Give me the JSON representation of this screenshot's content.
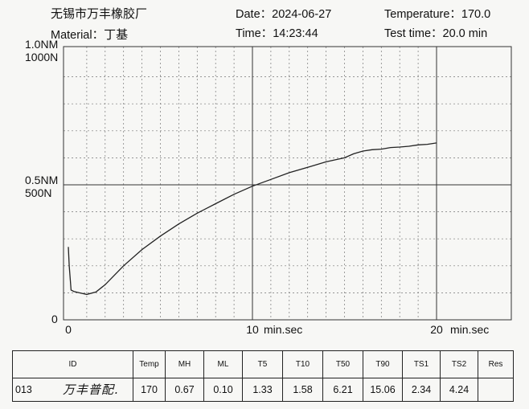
{
  "header": {
    "company": "无锡市万丰橡胶厂",
    "material_label": "Material：",
    "material": "丁基",
    "date_label": "Date：",
    "date": "2024-06-27",
    "time_label": "Time：",
    "time": "14:23:44",
    "temperature_label": "Temperature：",
    "temperature": "170.0",
    "test_time_label": "Test time：",
    "test_time": "20.0 min"
  },
  "chart_data": {
    "type": "line",
    "ylabel_top": [
      "1.0NM",
      "1000N"
    ],
    "ylabel_mid": [
      "0.5NM",
      "500N"
    ],
    "ylabel_zero": "0",
    "xticks": [
      {
        "value": 0,
        "label": "0"
      },
      {
        "value": 10,
        "label": "10"
      },
      {
        "value": 20,
        "label": "20"
      }
    ],
    "xunit_label": "min.sec",
    "xlim": [
      0,
      20
    ],
    "ylim": [
      0,
      1.0
    ],
    "grid": true,
    "series": [
      {
        "x": [
          0,
          0.05,
          0.15,
          0.3,
          0.6,
          1.0,
          1.5,
          2.0,
          3.0,
          4.0,
          5.0,
          6.0,
          7.0,
          8.0,
          9.0,
          10.0,
          11.0,
          12.0,
          13.0,
          14.0,
          15.0,
          15.5,
          16.0,
          16.5,
          17.0,
          17.5,
          18.0,
          18.5,
          19.0,
          19.5,
          20.0
        ],
        "y": [
          0.27,
          0.2,
          0.11,
          0.105,
          0.1,
          0.094,
          0.103,
          0.13,
          0.2,
          0.26,
          0.31,
          0.355,
          0.395,
          0.43,
          0.465,
          0.495,
          0.52,
          0.545,
          0.565,
          0.585,
          0.6,
          0.615,
          0.625,
          0.63,
          0.632,
          0.638,
          0.64,
          0.643,
          0.648,
          0.65,
          0.655
        ],
        "color": "#222222"
      }
    ]
  },
  "results": {
    "headers": [
      "ID",
      "Temp",
      "MH",
      "ML",
      "T5",
      "T10",
      "T50",
      "T90",
      "TS1",
      "TS2",
      "Res"
    ],
    "row": [
      "013",
      "170",
      "0.67",
      "0.10",
      "1.33",
      "1.58",
      "6.21",
      "15.06",
      "2.34",
      "4.24",
      ""
    ],
    "signature": "万丰普配."
  }
}
